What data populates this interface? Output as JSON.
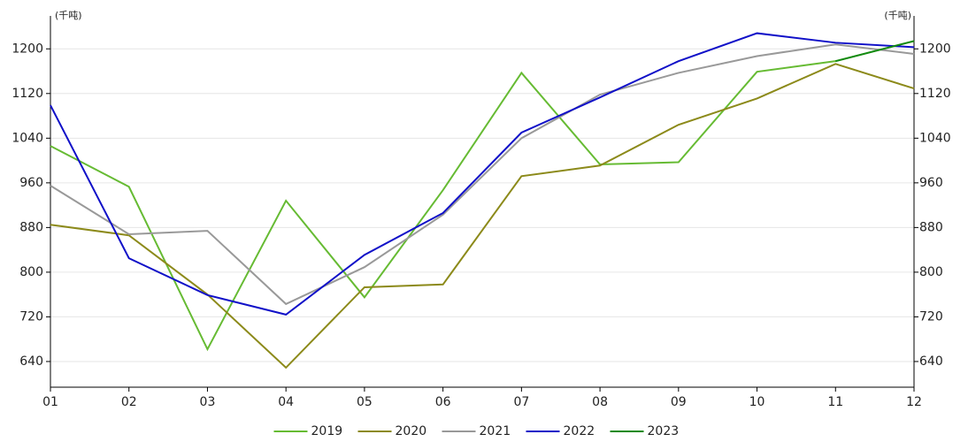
{
  "chart_data": {
    "type": "line",
    "y_label": "(千吨)",
    "y2_label": "(千吨)",
    "categories": [
      "01",
      "02",
      "03",
      "04",
      "05",
      "06",
      "07",
      "08",
      "09",
      "10",
      "11",
      "12"
    ],
    "series": [
      {
        "name": "2019",
        "color": "#66bb33",
        "values": [
          1026,
          953,
          662,
          928,
          755,
          947,
          1157,
          993,
          997,
          1159,
          1178,
          1214
        ]
      },
      {
        "name": "2020",
        "color": "#8c8a1a",
        "values": [
          885,
          866,
          760,
          629,
          773,
          778,
          972,
          991,
          1064,
          1111,
          1173,
          1129
        ]
      },
      {
        "name": "2021",
        "color": "#999999",
        "values": [
          955,
          868,
          874,
          743,
          809,
          903,
          1040,
          1118,
          1157,
          1187,
          1208,
          1191
        ]
      },
      {
        "name": "2022",
        "color": "#1010c8",
        "values": [
          1099,
          825,
          759,
          724,
          831,
          906,
          1050,
          1113,
          1178,
          1228,
          1211,
          1203
        ]
      },
      {
        "name": "2023",
        "color": "#128a12",
        "values": [
          null,
          null,
          null,
          null,
          null,
          null,
          null,
          null,
          null,
          null,
          1178,
          1214
        ]
      }
    ],
    "ylim": [
      594,
      1259
    ],
    "yticks": [
      640,
      720,
      800,
      880,
      960,
      1040,
      1120,
      1200
    ],
    "y2lim": [
      594,
      1259
    ],
    "y2ticks": [
      640,
      720,
      800,
      880,
      960,
      1040,
      1120,
      1200
    ],
    "grid": true
  }
}
